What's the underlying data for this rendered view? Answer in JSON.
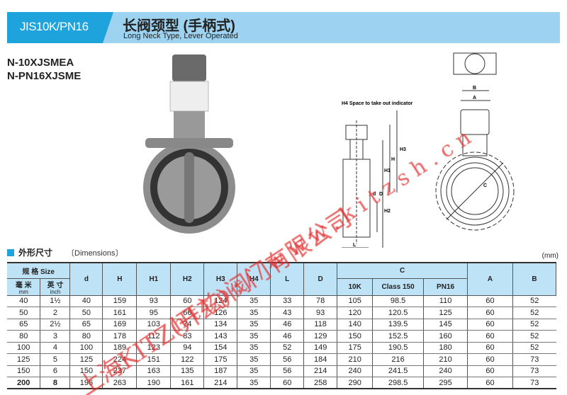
{
  "header": {
    "code": "JIS10K/PN16",
    "title_cn": "长阀颈型 (手柄式)",
    "title_en": "Long Neck Type, Lever Operated"
  },
  "models": [
    "N-10XJSMEA",
    "N-PN16XJSME"
  ],
  "diagram": {
    "note": "H4 Space to take out indicator",
    "labels": [
      "H4",
      "H3",
      "H",
      "H1",
      "H2",
      "d",
      "D",
      "L",
      "A",
      "B",
      "C"
    ]
  },
  "section": {
    "title": "外形尺寸",
    "title_en": "〔Dimensions〕",
    "unit": "(mm)"
  },
  "table": {
    "size_header": "规 格 Size",
    "mm_cn": "毫 米",
    "mm": "mm",
    "inch_cn": "英 寸",
    "inch": "inch",
    "columns": [
      "d",
      "H",
      "H1",
      "H2",
      "H3",
      "H4",
      "L",
      "D"
    ],
    "c_header": "C",
    "c_sub": [
      "10K",
      "Class 150",
      "PN16"
    ],
    "a": "A",
    "b": "B",
    "rows": [
      [
        "40",
        "1½",
        "40",
        "159",
        "93",
        "60",
        "124",
        "35",
        "33",
        "78",
        "105",
        "98.5",
        "110",
        "60",
        "52"
      ],
      [
        "50",
        "2",
        "50",
        "161",
        "95",
        "66",
        "126",
        "35",
        "43",
        "93",
        "120",
        "120.5",
        "125",
        "60",
        "52"
      ],
      [
        "65",
        "2½",
        "65",
        "169",
        "103",
        "74",
        "134",
        "35",
        "46",
        "118",
        "140",
        "139.5",
        "145",
        "60",
        "52"
      ],
      [
        "80",
        "3",
        "80",
        "178",
        "112",
        "83",
        "143",
        "35",
        "46",
        "129",
        "150",
        "152.5",
        "160",
        "60",
        "52"
      ],
      [
        "100",
        "4",
        "100",
        "189",
        "123",
        "94",
        "154",
        "35",
        "52",
        "149",
        "175",
        "190.5",
        "180",
        "60",
        "52"
      ],
      [
        "125",
        "5",
        "125",
        "224",
        "151",
        "122",
        "175",
        "35",
        "56",
        "184",
        "210",
        "216",
        "210",
        "60",
        "73"
      ],
      [
        "150",
        "6",
        "150",
        "237",
        "163",
        "135",
        "187",
        "35",
        "56",
        "214",
        "240",
        "241.5",
        "240",
        "60",
        "73"
      ],
      [
        "200",
        "8",
        "196",
        "263",
        "190",
        "161",
        "214",
        "35",
        "60",
        "258",
        "290",
        "298.5",
        "295",
        "60",
        "73"
      ]
    ]
  },
  "watermark": "上海KITZ(开兹)阀门有限公司 http://www.kitzsh.cn",
  "colors": {
    "accent": "#1ea3dc",
    "header_light": "#9dd3f0",
    "table_header": "#bfe3f6",
    "watermark": "#e23030"
  }
}
